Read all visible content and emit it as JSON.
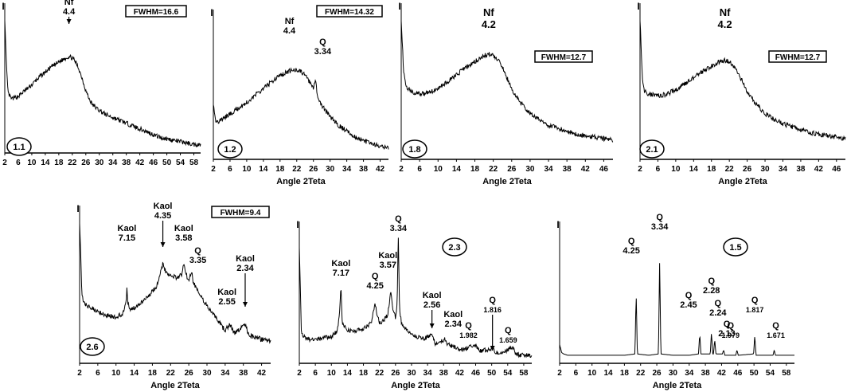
{
  "chart_data": [
    {
      "id": "1.1",
      "type": "line",
      "fwhm_label": "FWHM=16.6",
      "ylabel": "I",
      "xlabel": "",
      "xlim": [
        2,
        60
      ],
      "xticks": [
        "2",
        "6",
        "10",
        "14",
        "18",
        "22",
        "26",
        "30",
        "34",
        "38",
        "42",
        "46",
        "50",
        "54",
        "58"
      ],
      "annotations": [
        {
          "label": "Nf",
          "value": "4.4",
          "x": 21,
          "arrow": true
        }
      ],
      "x": [
        2,
        2.5,
        3,
        4,
        6,
        8,
        10,
        12,
        14,
        16,
        18,
        20,
        21,
        22,
        23,
        24,
        25,
        26,
        27,
        28,
        30,
        32,
        34,
        36,
        38,
        40,
        42,
        44,
        46,
        48,
        50,
        52,
        54,
        56,
        58,
        60
      ],
      "y": [
        95,
        60,
        42,
        38,
        40,
        44,
        48,
        53,
        57,
        61,
        64,
        67,
        68,
        67,
        64,
        59,
        52,
        44,
        38,
        34,
        30,
        27,
        25,
        23,
        21,
        19,
        17,
        15,
        13,
        11,
        10,
        9,
        8,
        7,
        6,
        6
      ]
    },
    {
      "id": "1.2",
      "type": "line",
      "fwhm_label": "FWHM=14.32",
      "ylabel": "I",
      "xlabel": "Angle 2Teta",
      "xlim": [
        2,
        44
      ],
      "xticks": [
        "2",
        "6",
        "10",
        "14",
        "18",
        "22",
        "26",
        "30",
        "34",
        "38",
        "42"
      ],
      "annotations": [
        {
          "label": "Nf",
          "value": "4.4",
          "x": 21,
          "arrow": false
        },
        {
          "label": "Q",
          "value": "3.34",
          "x": 26.7,
          "arrow": false
        }
      ],
      "x": [
        2,
        2.5,
        3,
        4,
        6,
        8,
        10,
        12,
        14,
        16,
        18,
        20,
        21,
        22,
        23,
        24,
        25,
        26,
        26.6,
        26.8,
        27,
        28,
        30,
        32,
        34,
        36,
        38,
        40,
        42,
        44
      ],
      "y": [
        40,
        28,
        26,
        28,
        32,
        36,
        40,
        45,
        50,
        55,
        59,
        62,
        63,
        63,
        62,
        59,
        55,
        50,
        56,
        48,
        44,
        38,
        30,
        24,
        20,
        16,
        13,
        11,
        9,
        8
      ]
    },
    {
      "id": "1.8",
      "type": "line",
      "fwhm_label": "FWHM=12.7",
      "ylabel": "I",
      "xlabel": "Angle 2Teta",
      "xlim": [
        2,
        48
      ],
      "xticks": [
        "2",
        "6",
        "10",
        "14",
        "18",
        "22",
        "26",
        "30",
        "34",
        "38",
        "42",
        "46"
      ],
      "annotations": [
        {
          "label": "Nf",
          "value": "4.2",
          "x": 21,
          "arrow": false
        }
      ],
      "x": [
        2,
        2.5,
        3,
        4,
        6,
        8,
        10,
        12,
        14,
        16,
        18,
        20,
        21,
        22,
        23,
        24,
        25,
        26,
        28,
        30,
        32,
        34,
        36,
        38,
        40,
        42,
        44,
        46,
        48
      ],
      "y": [
        95,
        60,
        50,
        46,
        44,
        45,
        48,
        52,
        57,
        62,
        66,
        70,
        71,
        70,
        67,
        62,
        55,
        47,
        38,
        31,
        27,
        23,
        21,
        19,
        17,
        16,
        15,
        14,
        13
      ]
    },
    {
      "id": "2.1",
      "type": "line",
      "fwhm_label": "FWHM=12.7",
      "ylabel": "I",
      "xlabel": "Angle 2Teta",
      "xlim": [
        2,
        48
      ],
      "xticks": [
        "2",
        "6",
        "10",
        "14",
        "18",
        "22",
        "26",
        "30",
        "34",
        "38",
        "42",
        "46"
      ],
      "annotations": [
        {
          "label": "Nf",
          "value": "4.2",
          "x": 21,
          "arrow": false
        }
      ],
      "x": [
        2,
        2.5,
        3,
        4,
        6,
        8,
        10,
        12,
        14,
        16,
        18,
        20,
        21,
        22,
        23,
        24,
        25,
        26,
        28,
        30,
        32,
        34,
        36,
        38,
        40,
        42,
        44,
        46,
        48
      ],
      "y": [
        95,
        55,
        46,
        44,
        43,
        44,
        47,
        51,
        55,
        59,
        63,
        66,
        67,
        66,
        63,
        58,
        52,
        45,
        37,
        31,
        27,
        24,
        22,
        20,
        18,
        17,
        16,
        15,
        14
      ]
    },
    {
      "id": "2.6",
      "type": "line",
      "fwhm_label": "FWHM=9.4",
      "ylabel": "I",
      "xlabel": "Angle 2Teta",
      "xlim": [
        2,
        44
      ],
      "xticks": [
        "2",
        "6",
        "10",
        "14",
        "18",
        "22",
        "26",
        "30",
        "34",
        "38",
        "42"
      ],
      "annotations": [
        {
          "label": "Kaol",
          "value": "7.15",
          "x": 12.4,
          "arrow": false
        },
        {
          "label": "Kaol",
          "value": "4.35",
          "x": 20.3,
          "arrow": true
        },
        {
          "label": "Kaol",
          "value": "3.58",
          "x": 24.9,
          "arrow": false
        },
        {
          "label": "Q",
          "value": "3.35",
          "x": 26.6,
          "arrow": false
        },
        {
          "label": "Kaol",
          "value": "2.55",
          "x": 35.1,
          "arrow": false
        },
        {
          "label": "Kaol",
          "value": "2.34",
          "x": 38.4,
          "arrow": true
        }
      ],
      "x": [
        2,
        2.5,
        3,
        4,
        6,
        8,
        10,
        11.5,
        12.2,
        12.4,
        12.6,
        13,
        14,
        16,
        18,
        19,
        19.8,
        20.3,
        20.8,
        21.5,
        22.5,
        23.5,
        24.5,
        24.9,
        25.3,
        26,
        26.6,
        27,
        28,
        30,
        32,
        34,
        35.1,
        36,
        37,
        38.4,
        39,
        40,
        42,
        44
      ],
      "y": [
        95,
        45,
        40,
        38,
        35,
        32,
        31,
        33,
        40,
        52,
        40,
        36,
        37,
        42,
        48,
        52,
        62,
        66,
        62,
        60,
        58,
        57,
        60,
        68,
        60,
        55,
        62,
        54,
        48,
        38,
        30,
        22,
        26,
        20,
        22,
        26,
        20,
        18,
        16,
        15
      ]
    },
    {
      "id": "2.3",
      "type": "line",
      "fwhm_label": "",
      "ylabel": "I",
      "xlabel": "Angle 2Teta",
      "xlim": [
        2,
        60
      ],
      "xticks": [
        "2",
        "6",
        "10",
        "14",
        "18",
        "22",
        "26",
        "30",
        "34",
        "38",
        "42",
        "46",
        "50",
        "54",
        "58"
      ],
      "annotations": [
        {
          "label": "Kaol",
          "value": "7.17",
          "x": 12.4,
          "arrow": false
        },
        {
          "label": "Q",
          "value": "4.25",
          "x": 20.9,
          "arrow": false
        },
        {
          "label": "Kaol",
          "value": "3.57",
          "x": 24.9,
          "arrow": false
        },
        {
          "label": "Q",
          "value": "3.34",
          "x": 26.7,
          "arrow": false
        },
        {
          "label": "Kaol",
          "value": "2.56",
          "x": 35.1,
          "arrow": true
        },
        {
          "label": "Kaol",
          "value": "2.34",
          "x": 38.4,
          "arrow": false
        },
        {
          "label": "Q",
          "value": "1.982",
          "x": 45.8,
          "arrow": false
        },
        {
          "label": "Q",
          "value": "1.816",
          "x": 50.2,
          "arrow": true
        },
        {
          "label": "Q",
          "value": "1.659",
          "x": 55.3,
          "arrow": false
        }
      ],
      "x": [
        2,
        2.5,
        3,
        4,
        6,
        8,
        10,
        11.5,
        12.1,
        12.4,
        12.7,
        14,
        16,
        18,
        20,
        20.5,
        20.9,
        21.3,
        22,
        23,
        24,
        24.5,
        24.9,
        25.3,
        26,
        26.4,
        26.7,
        27,
        27.5,
        29,
        31,
        33,
        35.1,
        36,
        38.4,
        39,
        41,
        43,
        45.8,
        47,
        50.2,
        51,
        53,
        55.3,
        56,
        58,
        60
      ],
      "y": [
        88,
        25,
        20,
        18,
        18,
        19,
        20,
        24,
        40,
        58,
        30,
        25,
        24,
        26,
        30,
        40,
        44,
        38,
        30,
        32,
        36,
        46,
        54,
        40,
        34,
        44,
        96,
        40,
        30,
        24,
        20,
        18,
        22,
        14,
        18,
        14,
        12,
        10,
        14,
        9,
        11,
        8,
        8,
        12,
        7,
        6,
        6
      ]
    },
    {
      "id": "1.5",
      "type": "line",
      "fwhm_label": "",
      "ylabel": "I",
      "xlabel": "Angle 2Teta",
      "xlim": [
        2,
        60
      ],
      "xticks": [
        "2",
        "6",
        "10",
        "14",
        "18",
        "22",
        "26",
        "30",
        "34",
        "38",
        "42",
        "46",
        "50",
        "54",
        "58"
      ],
      "annotations": [
        {
          "label": "Q",
          "value": "4.25",
          "x": 20.9,
          "arrow": false
        },
        {
          "label": "Q",
          "value": "3.34",
          "x": 26.7,
          "arrow": false
        },
        {
          "label": "Q",
          "value": "2.45",
          "x": 36.6,
          "arrow": false
        },
        {
          "label": "Q",
          "value": "2.28",
          "x": 39.5,
          "arrow": false
        },
        {
          "label": "Q",
          "value": "2.24",
          "x": 40.3,
          "arrow": false
        },
        {
          "label": "Q",
          "value": "2.13",
          "x": 42.5,
          "arrow": false
        },
        {
          "label": "Q",
          "value": "1.979",
          "x": 45.8,
          "arrow": false
        },
        {
          "label": "Q",
          "value": "1.817",
          "x": 50.2,
          "arrow": false
        },
        {
          "label": "Q",
          "value": "1.671",
          "x": 55.0,
          "arrow": false
        }
      ],
      "x": [
        2,
        2.5,
        3,
        4,
        6,
        10,
        14,
        18,
        20.6,
        20.9,
        21.2,
        24,
        26.4,
        26.7,
        27,
        30,
        34,
        36.3,
        36.6,
        36.9,
        39.2,
        39.5,
        39.8,
        40,
        40.3,
        40.6,
        42.2,
        42.5,
        42.8,
        45.5,
        45.8,
        46.1,
        49.9,
        50.2,
        50.5,
        54.7,
        55,
        55.3,
        58,
        60
      ],
      "y": [
        14,
        8,
        7,
        6,
        6,
        6,
        6,
        6,
        7,
        52,
        7,
        6,
        7,
        75,
        7,
        6,
        6,
        7,
        22,
        7,
        7,
        23,
        7,
        7,
        18,
        7,
        7,
        10,
        6,
        6,
        10,
        6,
        7,
        21,
        6,
        6,
        10,
        6,
        6,
        6
      ]
    }
  ]
}
